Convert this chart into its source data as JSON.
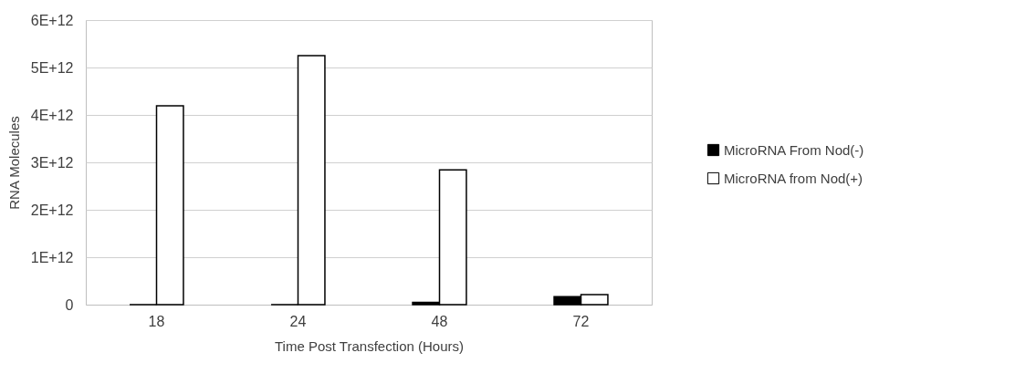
{
  "chart_data": {
    "type": "bar",
    "xlabel": "Time Post Transfection (Hours)",
    "ylabel": "RNA Molecules",
    "categories": [
      "18",
      "24",
      "48",
      "72"
    ],
    "series": [
      {
        "name": "MicroRNA From  Nod(-)",
        "color": "#000000",
        "values": [
          0,
          0,
          50000000000,
          170000000000
        ]
      },
      {
        "name": "MicroRNA from Nod(+)",
        "color": "#ffffff",
        "values": [
          4190000000000,
          5250000000000,
          2840000000000,
          210000000000
        ]
      }
    ],
    "ylim": [
      0,
      6000000000000
    ],
    "yticks": [
      {
        "value": 0,
        "label": "0"
      },
      {
        "value": 1000000000000,
        "label": "1E+12"
      },
      {
        "value": 2000000000000,
        "label": "2E+12"
      },
      {
        "value": 3000000000000,
        "label": "3E+12"
      },
      {
        "value": 4000000000000,
        "label": "4E+12"
      },
      {
        "value": 5000000000000,
        "label": "5E+12"
      },
      {
        "value": 6000000000000,
        "label": "6E+12"
      }
    ],
    "grid": "y",
    "legend": "right"
  }
}
